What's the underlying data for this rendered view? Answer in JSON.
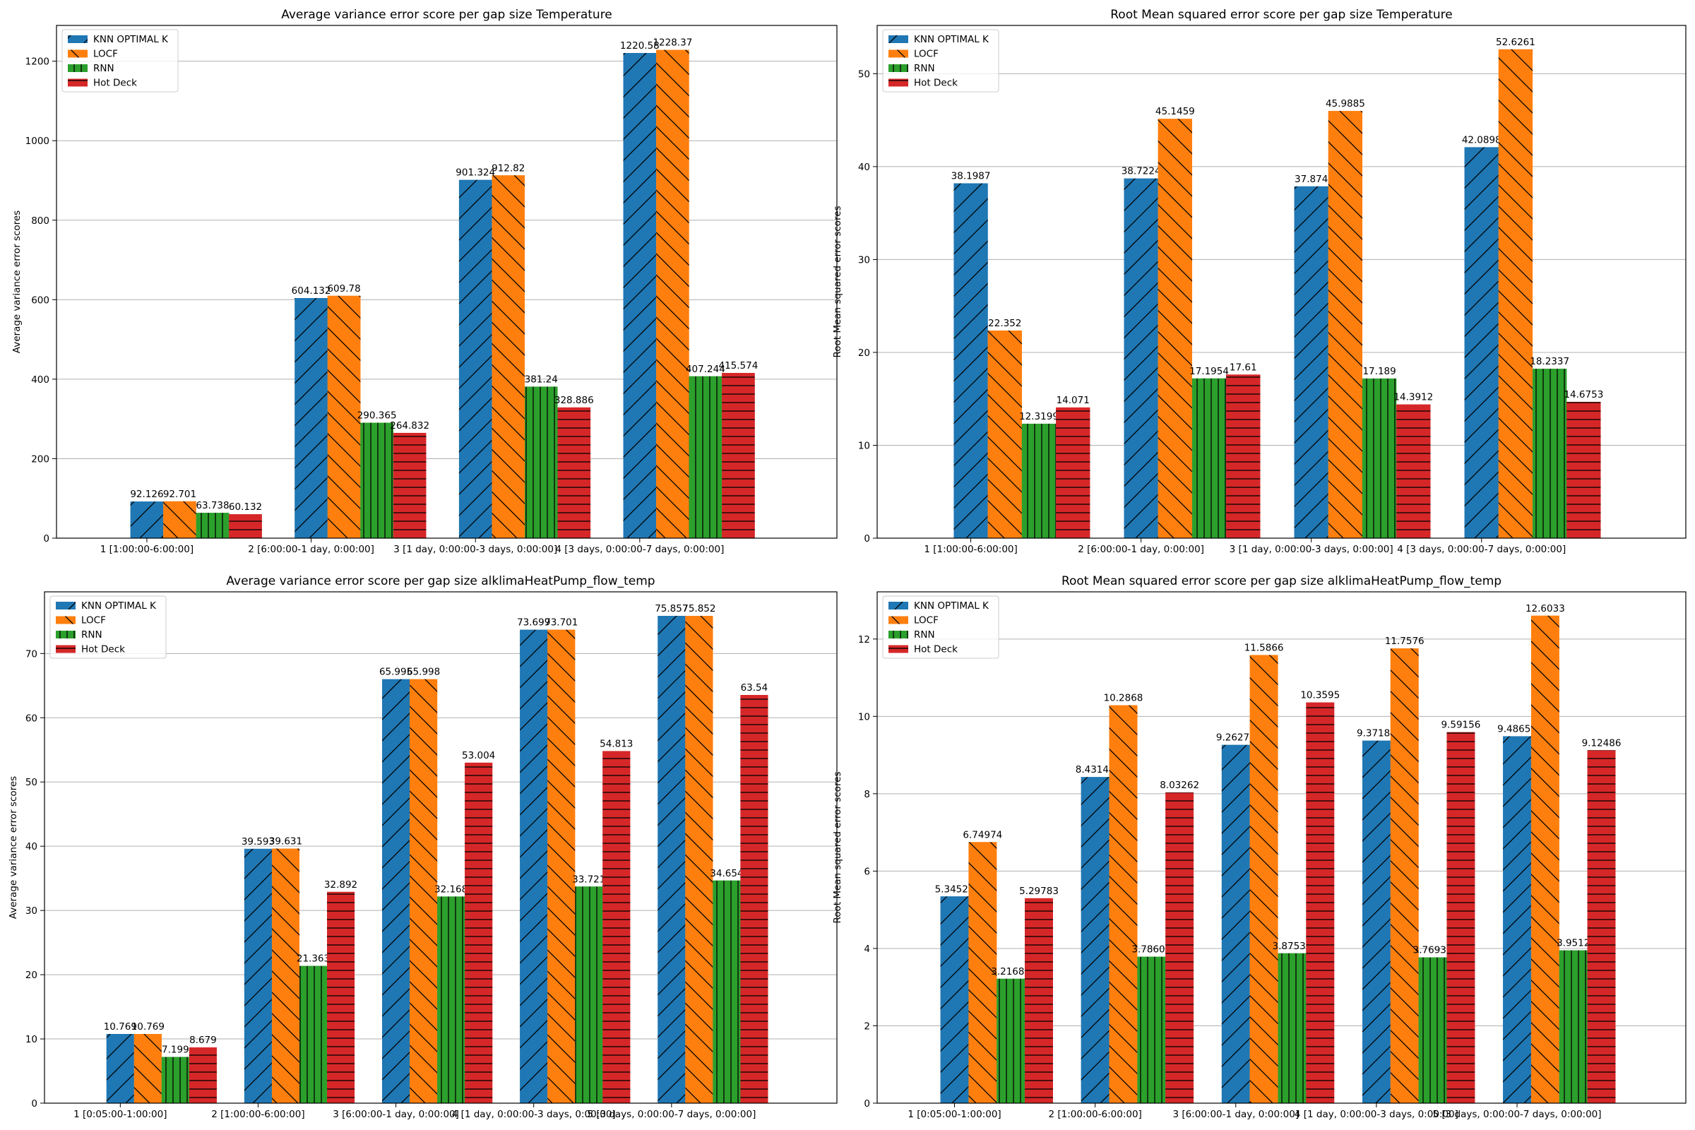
{
  "colors": {
    "series": [
      "#1f77b4",
      "#ff7f0e",
      "#2ca02c",
      "#d62728"
    ],
    "grid": "#b0b0b0",
    "hatch": "#000000"
  },
  "chart_data": [
    {
      "type": "bar",
      "title": "Average variance error score per gap size Temperature",
      "xlabel": "",
      "ylabel": "Average variance error scores",
      "ylim": [
        0,
        1290
      ],
      "yticks": [
        0,
        200,
        400,
        600,
        800,
        1000,
        1200
      ],
      "grid": "y",
      "legend_position": "upper-left",
      "categories": [
        "1 [1:00:00-6:00:00]",
        "2 [6:00:00-1 day, 0:00:00]",
        "3 [1 day, 0:00:00-3 days, 0:00:00]",
        "4 [3 days, 0:00:00-7 days, 0:00:00]"
      ],
      "series": [
        {
          "name": "KNN OPTIMAL K",
          "hatch": "forward-diagonal",
          "values": [
            92.126,
            604.132,
            901.324,
            1220.58
          ],
          "labels": [
            "92.126",
            "604.132",
            "901.324",
            "1220.58"
          ]
        },
        {
          "name": "LOCF",
          "hatch": "back-diagonal",
          "values": [
            92.701,
            609.78,
            912.82,
            1228.37
          ],
          "labels": [
            "92.701",
            "609.78",
            "912.82",
            "1228.37"
          ]
        },
        {
          "name": "RNN",
          "hatch": "vertical",
          "values": [
            63.738,
            290.365,
            381.24,
            407.244
          ],
          "labels": [
            "63.738",
            "290.365",
            "381.24",
            "407.244"
          ]
        },
        {
          "name": "Hot Deck",
          "hatch": "horizontal",
          "values": [
            60.132,
            264.832,
            328.886,
            415.574
          ],
          "labels": [
            "60.132",
            "264.832",
            "328.886",
            "415.574"
          ]
        }
      ]
    },
    {
      "type": "bar",
      "title": "Root Mean squared error score per gap size Temperature",
      "xlabel": "",
      "ylabel": "Root Mean squared error scores",
      "ylim": [
        0,
        55.2
      ],
      "yticks": [
        0,
        10,
        20,
        30,
        40,
        50
      ],
      "grid": "y",
      "legend_position": "upper-left",
      "categories": [
        "1 [1:00:00-6:00:00]",
        "2 [6:00:00-1 day, 0:00:00]",
        "3 [1 day, 0:00:00-3 days, 0:00:00]",
        "4 [3 days, 0:00:00-7 days, 0:00:00]"
      ],
      "series": [
        {
          "name": "KNN OPTIMAL K",
          "hatch": "forward-diagonal",
          "values": [
            38.1987,
            38.7224,
            37.874,
            42.0898
          ],
          "labels": [
            "38.1987",
            "38.7224",
            "37.874",
            "42.0898"
          ]
        },
        {
          "name": "LOCF",
          "hatch": "back-diagonal",
          "values": [
            22.352,
            45.1459,
            45.9885,
            52.6261
          ],
          "labels": [
            "22.352",
            "45.1459",
            "45.9885",
            "52.6261"
          ]
        },
        {
          "name": "RNN",
          "hatch": "vertical",
          "values": [
            12.3199,
            17.1954,
            17.189,
            18.2337
          ],
          "labels": [
            "12.3199",
            "17.1954",
            "17.189",
            "18.2337"
          ]
        },
        {
          "name": "Hot Deck",
          "hatch": "horizontal",
          "values": [
            14.071,
            17.61,
            14.3912,
            14.6753
          ],
          "labels": [
            "14.071",
            "17.61",
            "14.3912",
            "14.6753"
          ]
        }
      ]
    },
    {
      "type": "bar",
      "title": "Average variance error score per gap size alklimaHeatPump_flow_temp",
      "xlabel": "",
      "ylabel": "Average variance error scores",
      "ylim": [
        0,
        79.6
      ],
      "yticks": [
        0,
        10,
        20,
        30,
        40,
        50,
        60,
        70
      ],
      "grid": "y",
      "legend_position": "upper-left",
      "categories": [
        "1 [0:05:00-1:00:00]",
        "2 [1:00:00-6:00:00]",
        "3 [6:00:00-1 day, 0:00:00]",
        "4 [1 day, 0:00:00-3 days, 0:00:00]",
        "5 [3 days, 0:00:00-7 days, 0:00:00]"
      ],
      "series": [
        {
          "name": "KNN OPTIMAL K",
          "hatch": "forward-diagonal",
          "values": [
            10.769,
            39.593,
            65.995,
            73.699,
            75.857
          ],
          "labels": [
            "10.769",
            "39.593",
            "65.995",
            "73.699",
            "75.857"
          ]
        },
        {
          "name": "LOCF",
          "hatch": "back-diagonal",
          "values": [
            10.769,
            39.631,
            65.998,
            73.701,
            75.852
          ],
          "labels": [
            "10.769",
            "39.631",
            "65.998",
            "73.701",
            "75.852"
          ]
        },
        {
          "name": "RNN",
          "hatch": "vertical",
          "values": [
            7.199,
            21.363,
            32.168,
            33.721,
            34.654
          ],
          "labels": [
            "7.199",
            "21.363",
            "32.168",
            "33.721",
            "34.654"
          ]
        },
        {
          "name": "Hot Deck",
          "hatch": "horizontal",
          "values": [
            8.679,
            32.892,
            53.004,
            54.813,
            63.54
          ],
          "labels": [
            "8.679",
            "32.892",
            "53.004",
            "54.813",
            "63.54"
          ]
        }
      ]
    },
    {
      "type": "bar",
      "title": "Root Mean squared error score per gap size alklimaHeatPump_flow_temp",
      "xlabel": "",
      "ylabel": "Root Mean squared error scores",
      "ylim": [
        0,
        13.22
      ],
      "yticks": [
        0,
        2,
        4,
        6,
        8,
        10,
        12
      ],
      "grid": "y",
      "legend_position": "upper-left",
      "categories": [
        "1 [0:05:00-1:00:00]",
        "2 [1:00:00-6:00:00]",
        "3 [6:00:00-1 day, 0:00:00]",
        "4 [1 day, 0:00:00-3 days, 0:00:00]",
        "5 [3 days, 0:00:00-7 days, 0:00:00]"
      ],
      "series": [
        {
          "name": "KNN OPTIMAL K",
          "hatch": "forward-diagonal",
          "values": [
            5.34528,
            8.43143,
            9.26277,
            9.37182,
            9.48652
          ],
          "labels": [
            "5.34528",
            "8.43143",
            "9.26277",
            "9.37182",
            "9.48652"
          ]
        },
        {
          "name": "LOCF",
          "hatch": "back-diagonal",
          "values": [
            6.74974,
            10.2868,
            11.5866,
            11.7576,
            12.6033
          ],
          "labels": [
            "6.74974",
            "10.2868",
            "11.5866",
            "11.7576",
            "12.6033"
          ]
        },
        {
          "name": "RNN",
          "hatch": "vertical",
          "values": [
            3.21683,
            3.78603,
            3.87531,
            3.76935,
            3.9512
          ],
          "labels": [
            "3.21683",
            "3.78603",
            "3.87531",
            "3.76935",
            "3.9512"
          ]
        },
        {
          "name": "Hot Deck",
          "hatch": "horizontal",
          "values": [
            5.29783,
            8.03262,
            10.3595,
            9.59156,
            9.12486
          ],
          "labels": [
            "5.29783",
            "8.03262",
            "10.3595",
            "9.59156",
            "9.12486"
          ]
        }
      ]
    }
  ]
}
